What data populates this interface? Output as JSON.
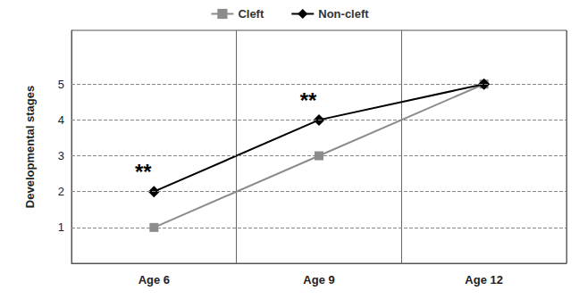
{
  "chart_data": {
    "type": "line",
    "y_label": "Developmental stages",
    "categories": [
      "Age 6",
      "Age 9",
      "Age 12"
    ],
    "series": [
      {
        "name": "Cleft",
        "color": "#8c8c8c",
        "marker": "square",
        "values": [
          1,
          3,
          5
        ]
      },
      {
        "name": "Non-cleft",
        "color": "#000000",
        "marker": "diamond",
        "values": [
          2,
          4,
          5
        ]
      }
    ],
    "ylim": [
      0,
      6.5
    ],
    "yticks": [
      1,
      2,
      3,
      4,
      5
    ],
    "grid": true,
    "legend": "top",
    "annotations": [
      {
        "text": "**",
        "x": "Age 6",
        "y": 2.55
      },
      {
        "text": "**",
        "x": "Age 9",
        "y": 4.55
      }
    ]
  }
}
